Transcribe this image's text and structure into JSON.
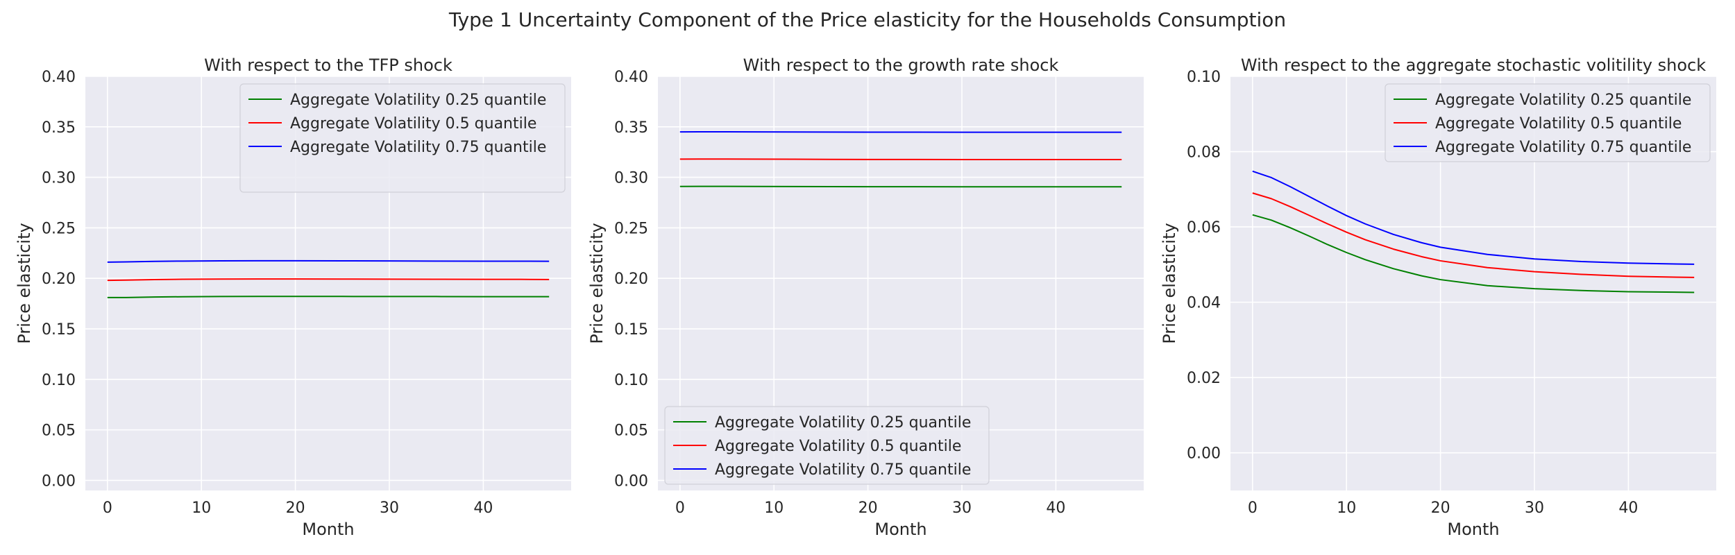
{
  "figure_title": "Type 1 Uncertainty Component of the Price elasticity for the Households Consumption",
  "colors": {
    "panel_bg": "#EAEAF2",
    "grid": "#FFFFFF",
    "text": "#262626",
    "series": [
      "#008000",
      "#FF0000",
      "#0000FF"
    ]
  },
  "chart_data": [
    {
      "type": "line",
      "title": "With respect to the TFP shock",
      "xlabel": "Month",
      "ylabel": "Price elasticity",
      "xlim": [
        -2.35,
        49.35
      ],
      "ylim": [
        -0.01,
        0.4
      ],
      "xticks": [
        0,
        10,
        20,
        30,
        40
      ],
      "yticks": [
        0.0,
        0.05,
        0.1,
        0.15,
        0.2,
        0.25,
        0.3,
        0.35,
        0.4
      ],
      "ytick_decimals": 2,
      "grid": true,
      "legend": "top-right",
      "x": [
        0,
        2,
        5,
        8,
        12,
        16,
        20,
        25,
        30,
        35,
        40,
        44,
        47
      ],
      "series": [
        {
          "name": "Aggregate Volatility 0.25 quantile",
          "values": [
            0.181,
            0.181,
            0.1815,
            0.1818,
            0.182,
            0.1821,
            0.1821,
            0.1821,
            0.182,
            0.182,
            0.1819,
            0.1819,
            0.1819
          ]
        },
        {
          "name": "Aggregate Volatility 0.5 quantile",
          "values": [
            0.198,
            0.1983,
            0.1988,
            0.1991,
            0.1993,
            0.1994,
            0.1994,
            0.1993,
            0.1992,
            0.1991,
            0.199,
            0.199,
            0.1989
          ]
        },
        {
          "name": "Aggregate Volatility 0.75 quantile",
          "values": [
            0.216,
            0.2163,
            0.2168,
            0.2171,
            0.2173,
            0.2174,
            0.2174,
            0.2173,
            0.2172,
            0.2171,
            0.217,
            0.217,
            0.2169
          ]
        }
      ]
    },
    {
      "type": "line",
      "title": "With respect to the growth rate shock",
      "xlabel": "Month",
      "ylabel": "Price elasticity",
      "xlim": [
        -2.35,
        49.35
      ],
      "ylim": [
        -0.01,
        0.4
      ],
      "xticks": [
        0,
        10,
        20,
        30,
        40
      ],
      "yticks": [
        0.0,
        0.05,
        0.1,
        0.15,
        0.2,
        0.25,
        0.3,
        0.35,
        0.4
      ],
      "ytick_decimals": 2,
      "grid": true,
      "legend": "bottom-left",
      "x": [
        0,
        2,
        5,
        8,
        12,
        16,
        20,
        25,
        30,
        35,
        40,
        44,
        47
      ],
      "series": [
        {
          "name": "Aggregate Volatility 0.25 quantile",
          "values": [
            0.291,
            0.2911,
            0.2911,
            0.291,
            0.2909,
            0.2908,
            0.2907,
            0.2907,
            0.2906,
            0.2906,
            0.2906,
            0.2906,
            0.2906
          ]
        },
        {
          "name": "Aggregate Volatility 0.5 quantile",
          "values": [
            0.318,
            0.3181,
            0.3181,
            0.318,
            0.3179,
            0.3178,
            0.3177,
            0.3177,
            0.3176,
            0.3176,
            0.3176,
            0.3176,
            0.3176
          ]
        },
        {
          "name": "Aggregate Volatility 0.75 quantile",
          "values": [
            0.345,
            0.3451,
            0.3451,
            0.345,
            0.3449,
            0.3448,
            0.3447,
            0.3447,
            0.3446,
            0.3446,
            0.3446,
            0.3446,
            0.3446
          ]
        }
      ]
    },
    {
      "type": "line",
      "title": "With respect to the aggregate stochastic volitility shock",
      "xlabel": "Month",
      "ylabel": "Price elasticity",
      "xlim": [
        -2.35,
        49.35
      ],
      "ylim": [
        -0.01,
        0.1
      ],
      "xticks": [
        0,
        10,
        20,
        30,
        40
      ],
      "yticks": [
        0.0,
        0.02,
        0.04,
        0.06,
        0.08,
        0.1
      ],
      "ytick_decimals": 2,
      "grid": true,
      "legend": "top-right",
      "x": [
        0,
        2,
        4,
        6,
        8,
        10,
        12,
        15,
        18,
        20,
        25,
        30,
        35,
        40,
        44,
        47
      ],
      "series": [
        {
          "name": "Aggregate Volatility 0.25 quantile",
          "values": [
            0.0632,
            0.0618,
            0.0598,
            0.0576,
            0.0553,
            0.0532,
            0.0513,
            0.0489,
            0.047,
            0.046,
            0.0444,
            0.0436,
            0.0431,
            0.0428,
            0.0427,
            0.0426
          ]
        },
        {
          "name": "Aggregate Volatility 0.5 quantile",
          "values": [
            0.069,
            0.0675,
            0.0654,
            0.0631,
            0.0608,
            0.0586,
            0.0566,
            0.0541,
            0.0521,
            0.051,
            0.0492,
            0.0481,
            0.0474,
            0.0469,
            0.0467,
            0.0466
          ]
        },
        {
          "name": "Aggregate Volatility 0.75 quantile",
          "values": [
            0.0748,
            0.0731,
            0.0707,
            0.0681,
            0.0655,
            0.063,
            0.0608,
            0.058,
            0.0558,
            0.0546,
            0.0527,
            0.0515,
            0.0508,
            0.0504,
            0.0502,
            0.0501
          ]
        }
      ]
    }
  ]
}
